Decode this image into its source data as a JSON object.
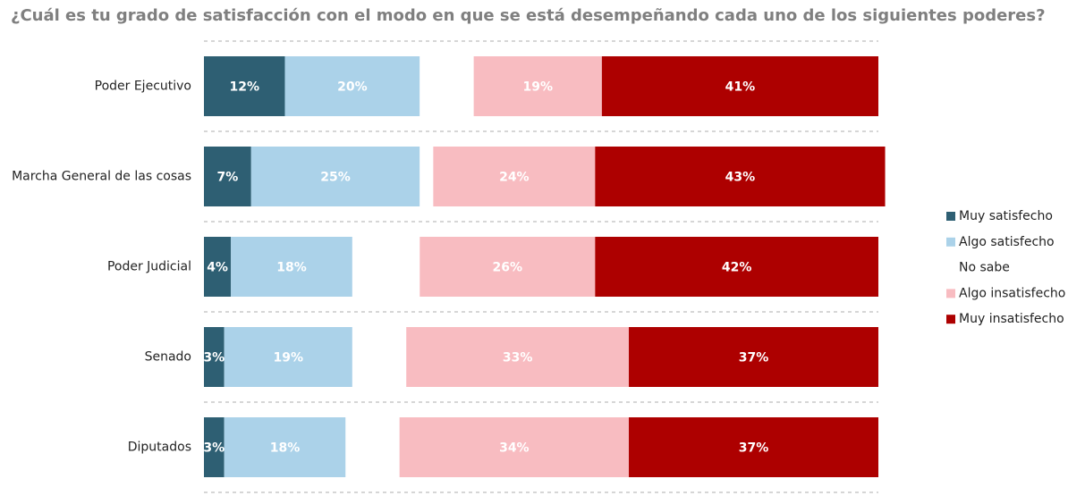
{
  "chart_data": {
    "type": "stacked-barh",
    "title": "¿Cuál es tu grado de satisfacción con el modo en que se está desempeñando cada uno de los siguientes poderes?",
    "categories": [
      "Poder Ejecutivo",
      "Marcha General de las cosas",
      "Poder Judicial",
      "Senado",
      "Diputados"
    ],
    "xlim": [
      0,
      100
    ],
    "series": [
      {
        "name": "Muy satisfecho",
        "color": "#2e5f73",
        "values": [
          12,
          7,
          4,
          3,
          3
        ],
        "value_labels": [
          "12%",
          "7%",
          "4%",
          "3%",
          "3%"
        ]
      },
      {
        "name": "Algo satisfecho",
        "color": "#abd2e9",
        "values": [
          20,
          25,
          18,
          19,
          18
        ],
        "value_labels": [
          "20%",
          "25%",
          "18%",
          "19%",
          "18%"
        ]
      },
      {
        "name": "No sabe",
        "color": "#ffffff",
        "values": [
          8,
          2,
          10,
          8,
          8
        ]
      },
      {
        "name": "Algo insatisfecho",
        "color": "#f8bcc1",
        "values": [
          19,
          24,
          26,
          33,
          34
        ],
        "value_labels": [
          "19%",
          "24%",
          "26%",
          "33%",
          "34%"
        ]
      },
      {
        "name": "Muy insatisfecho",
        "color": "#ad0000",
        "values": [
          41,
          43,
          42,
          37,
          37
        ],
        "value_labels": [
          "41%",
          "43%",
          "42%",
          "37%",
          "37%"
        ]
      }
    ]
  }
}
